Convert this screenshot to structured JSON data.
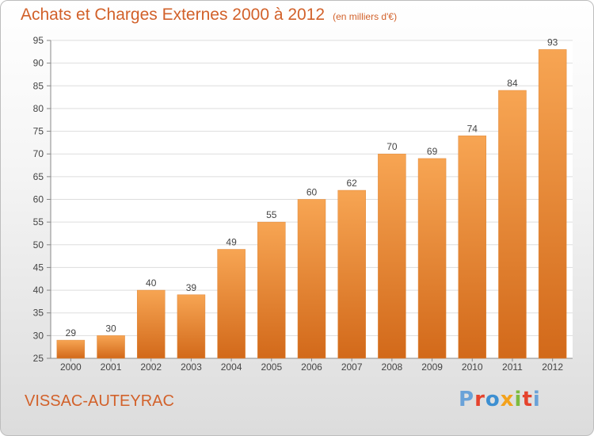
{
  "chart_data": {
    "type": "bar",
    "title": "Achats et Charges Externes 2000 à 2012",
    "subtitle": "(en milliers d'€)",
    "categories": [
      "2000",
      "2001",
      "2002",
      "2003",
      "2004",
      "2005",
      "2006",
      "2007",
      "2008",
      "2009",
      "2010",
      "2011",
      "2012"
    ],
    "values": [
      29,
      30,
      40,
      39,
      49,
      55,
      60,
      62,
      70,
      69,
      74,
      84,
      93
    ],
    "ylim": [
      25,
      95
    ],
    "yticks": [
      25,
      30,
      35,
      40,
      45,
      50,
      55,
      60,
      65,
      70,
      75,
      80,
      85,
      90,
      95
    ],
    "xlabel": "",
    "ylabel": "",
    "grid": true,
    "bar_color": "#f28e2b"
  },
  "footer": {
    "commune": "VISSAC-AUTEYRAC",
    "logo_text": "Proxiti"
  },
  "colors": {
    "accent": "#d2612a",
    "logo": [
      "#6aa2d8",
      "#e5432d",
      "#3d8fd1",
      "#f3a21c",
      "#7dbb3f",
      "#e5432d",
      "#6aa2d8"
    ]
  }
}
